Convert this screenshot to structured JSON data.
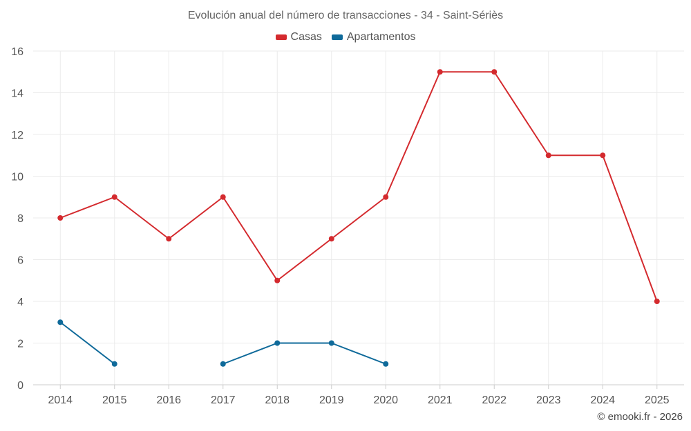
{
  "chart_data": {
    "type": "line",
    "title": "Evolución anual del número de transacciones - 34 - Saint-Sériès",
    "categories": [
      "2014",
      "2015",
      "2016",
      "2017",
      "2018",
      "2019",
      "2020",
      "2021",
      "2022",
      "2023",
      "2024",
      "2025"
    ],
    "ylim": [
      0,
      16
    ],
    "yticks": [
      0,
      2,
      4,
      6,
      8,
      10,
      12,
      14,
      16
    ],
    "grid": true,
    "legend_position": "top-center",
    "series": [
      {
        "name": "Casas",
        "color": "#d42a2e",
        "values": [
          8,
          9,
          7,
          9,
          5,
          7,
          9,
          15,
          15,
          11,
          11,
          4
        ]
      },
      {
        "name": "Apartamentos",
        "color": "#0f6a9a",
        "values": [
          3,
          1,
          null,
          1,
          2,
          2,
          1,
          null,
          null,
          null,
          null,
          null
        ]
      }
    ]
  },
  "legend": {
    "casas_label": "Casas",
    "apartamentos_label": "Apartamentos",
    "casas_color": "#d42a2e",
    "apartamentos_color": "#0f6a9a"
  },
  "credit": "© emooki.fr - 2026"
}
